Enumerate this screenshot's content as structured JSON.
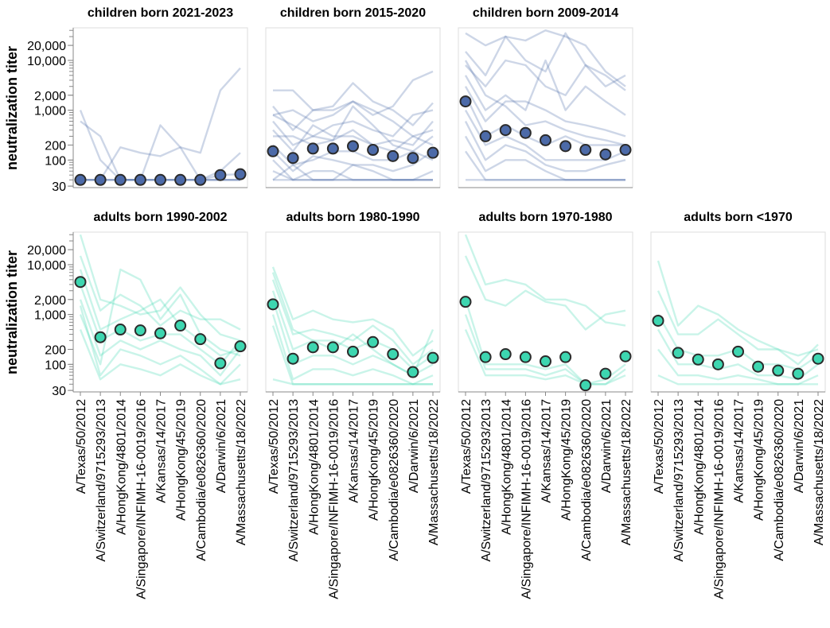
{
  "chart_data": {
    "type": "line",
    "y_axis_label": "neutralization titer",
    "y_scale": "log",
    "y_ticks": [
      "30",
      "100",
      "200",
      "1,000",
      "2,000",
      "10,000",
      "20,000"
    ],
    "y_tick_values": [
      30,
      100,
      200,
      1000,
      2000,
      10000,
      20000
    ],
    "ylim": [
      28,
      45000
    ],
    "x_categories": [
      "A/Texas/50/2012",
      "A/Switzerland/9715293/2013",
      "A/HongKong/4801/2014",
      "A/Singapore/INFIMH-16-0019/2016",
      "A/Kansas/14/2017",
      "A/HongKong/45/2019",
      "A/Cambodia/e0826360/2020",
      "A/Darwin/6/2021",
      "A/Massachusetts/18/2022"
    ],
    "colors": {
      "children": "#4c6aa8",
      "adults": "#3dd6b0",
      "point_stroke": "#2b2b2b"
    },
    "panels": [
      {
        "title": "children born 2021-2023",
        "group": "children",
        "median": [
          40,
          40,
          40,
          40,
          40,
          40,
          40,
          50,
          52
        ],
        "individuals": [
          [
            1000,
            100,
            40,
            40,
            40,
            40,
            40,
            40,
            40
          ],
          [
            600,
            300,
            40,
            40,
            40,
            40,
            40,
            40,
            40
          ],
          [
            40,
            40,
            180,
            140,
            120,
            180,
            140,
            2500,
            7000
          ],
          [
            40,
            40,
            40,
            40,
            500,
            180,
            40,
            40,
            40
          ],
          [
            40,
            40,
            40,
            40,
            40,
            40,
            40,
            60,
            140
          ],
          [
            40,
            40,
            40,
            40,
            40,
            40,
            40,
            50,
            52
          ]
        ]
      },
      {
        "title": "children born 2015-2020",
        "group": "children",
        "median": [
          150,
          110,
          170,
          170,
          190,
          160,
          120,
          110,
          140
        ],
        "individuals": [
          [
            2500,
            2500,
            1000,
            1000,
            1500,
            1000,
            600,
            300,
            400
          ],
          [
            1200,
            400,
            1000,
            1200,
            3500,
            1500,
            1000,
            500,
            1400
          ],
          [
            800,
            1000,
            600,
            800,
            1500,
            800,
            1200,
            4000,
            6000
          ],
          [
            600,
            200,
            300,
            500,
            600,
            400,
            300,
            800,
            1000
          ],
          [
            400,
            150,
            500,
            300,
            300,
            200,
            250,
            200,
            600
          ],
          [
            300,
            300,
            200,
            250,
            400,
            200,
            150,
            300,
            200
          ],
          [
            200,
            80,
            100,
            150,
            150,
            100,
            100,
            150,
            100
          ],
          [
            150,
            60,
            120,
            100,
            80,
            80,
            60,
            80,
            150
          ],
          [
            100,
            40,
            60,
            60,
            40,
            40,
            40,
            40,
            60
          ],
          [
            60,
            40,
            40,
            40,
            40,
            40,
            40,
            40,
            40
          ],
          [
            40,
            40,
            40,
            40,
            40,
            40,
            40,
            40,
            40
          ],
          [
            40,
            80,
            40,
            40,
            80,
            60,
            40,
            40,
            40
          ],
          [
            800,
            500,
            300,
            250,
            1200,
            500,
            200,
            150,
            300
          ]
        ]
      },
      {
        "title": "children born 2009-2014",
        "group": "children",
        "median": [
          1500,
          300,
          400,
          350,
          250,
          190,
          160,
          130,
          160
        ],
        "individuals": [
          [
            35000,
            20000,
            30000,
            25000,
            40000,
            30000,
            20000,
            6000,
            3000
          ],
          [
            15000,
            5000,
            30000,
            10000,
            6000,
            35000,
            8000,
            3000,
            5000
          ],
          [
            8000,
            3000,
            10000,
            8000,
            3000,
            2000,
            8000,
            5000,
            2500
          ],
          [
            5000,
            1000,
            2000,
            1000,
            10000,
            1000,
            3000,
            1500,
            800
          ],
          [
            3000,
            600,
            1500,
            1500,
            1000,
            600,
            500,
            400,
            300
          ],
          [
            2000,
            300,
            500,
            300,
            200,
            300,
            200,
            200,
            200
          ],
          [
            1000,
            200,
            300,
            200,
            100,
            100,
            100,
            100,
            150
          ],
          [
            600,
            100,
            200,
            150,
            80,
            60,
            60,
            80,
            100
          ],
          [
            300,
            60,
            100,
            100,
            60,
            40,
            40,
            40,
            40
          ],
          [
            150,
            40,
            40,
            40,
            40,
            40,
            40,
            40,
            40
          ],
          [
            40,
            40,
            40,
            40,
            40,
            40,
            40,
            40,
            40
          ],
          [
            10000,
            2000,
            1200,
            500,
            600,
            400,
            300,
            250,
            200
          ]
        ]
      },
      {
        "title": "adults born 1990-2002",
        "group": "adults",
        "median": [
          4500,
          350,
          500,
          480,
          420,
          600,
          320,
          105,
          230
        ],
        "individuals": [
          [
            40000,
            2000,
            1500,
            1000,
            1200,
            3500,
            1000,
            400,
            300
          ],
          [
            15000,
            1200,
            2500,
            1500,
            600,
            1200,
            800,
            800,
            500
          ],
          [
            8000,
            500,
            800,
            1200,
            2000,
            600,
            300,
            150,
            200
          ],
          [
            4000,
            300,
            500,
            300,
            400,
            400,
            200,
            100,
            300
          ],
          [
            2000,
            150,
            300,
            200,
            300,
            200,
            150,
            60,
            200
          ],
          [
            1500,
            60,
            200,
            150,
            100,
            150,
            80,
            40,
            100
          ],
          [
            1000,
            100,
            8000,
            5000,
            800,
            2500,
            400,
            200,
            150
          ],
          [
            500,
            50,
            100,
            80,
            60,
            100,
            60,
            40,
            50
          ]
        ]
      },
      {
        "title": "adults born 1980-1990",
        "group": "adults",
        "median": [
          1600,
          130,
          220,
          220,
          180,
          280,
          160,
          70,
          135
        ],
        "individuals": [
          [
            9000,
            800,
            1200,
            800,
            700,
            800,
            500,
            150,
            300
          ],
          [
            5000,
            400,
            500,
            400,
            300,
            600,
            300,
            100,
            200
          ],
          [
            3000,
            200,
            300,
            300,
            200,
            300,
            200,
            80,
            150
          ],
          [
            2000,
            100,
            150,
            150,
            100,
            150,
            100,
            60,
            100
          ],
          [
            1000,
            50,
            80,
            80,
            60,
            80,
            60,
            40,
            60
          ],
          [
            600,
            40,
            40,
            40,
            40,
            40,
            40,
            40,
            40
          ],
          [
            50,
            40,
            40,
            40,
            40,
            40,
            40,
            40,
            40
          ],
          [
            7000,
            500,
            300,
            200,
            400,
            200,
            100,
            60,
            500
          ]
        ]
      },
      {
        "title": "adults born 1970-1980",
        "group": "adults",
        "median": [
          1800,
          140,
          160,
          140,
          115,
          140,
          38,
          65,
          145
        ],
        "individuals": [
          [
            40000,
            4000,
            5000,
            4000,
            2000,
            2000,
            1500,
            700,
            600
          ],
          [
            15000,
            2000,
            1500,
            3000,
            1800,
            1500,
            500,
            1000,
            1200
          ],
          [
            2000,
            100,
            100,
            100,
            80,
            100,
            40,
            50,
            100
          ],
          [
            1000,
            80,
            80,
            80,
            60,
            80,
            40,
            40,
            80
          ],
          [
            500,
            60,
            60,
            60,
            50,
            60,
            40,
            40,
            60
          ]
        ]
      },
      {
        "title": "adults born <1970",
        "group": "adults",
        "median": [
          750,
          170,
          125,
          100,
          180,
          90,
          75,
          65,
          130
        ],
        "individuals": [
          [
            12000,
            600,
            1500,
            1000,
            500,
            300,
            200,
            150,
            200
          ],
          [
            3000,
            400,
            400,
            800,
            400,
            200,
            200,
            100,
            250
          ],
          [
            1000,
            200,
            150,
            150,
            200,
            100,
            100,
            80,
            150
          ],
          [
            500,
            100,
            100,
            80,
            100,
            60,
            60,
            50,
            100
          ],
          [
            200,
            60,
            60,
            50,
            60,
            50,
            40,
            40,
            60
          ],
          [
            60,
            40,
            40,
            40,
            40,
            40,
            40,
            40,
            40
          ]
        ]
      }
    ]
  }
}
